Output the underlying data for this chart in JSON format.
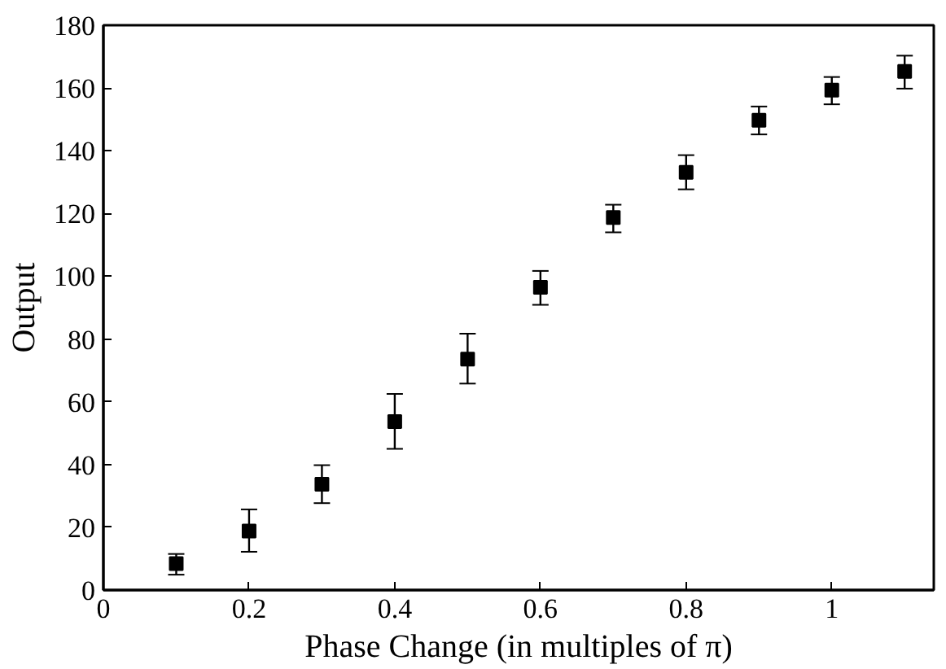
{
  "chart_data": {
    "type": "scatter",
    "xlabel": "Phase Change (in multiples of π)",
    "ylabel": "Output",
    "x": [
      0.1,
      0.2,
      0.3,
      0.4,
      0.5,
      0.6,
      0.7,
      0.8,
      0.9,
      1.0,
      1.1
    ],
    "series": [
      {
        "color": "#000000",
        "values": [
          8.4,
          18.8,
          33.7,
          53.7,
          73.6,
          96.5,
          118.7,
          133.1,
          149.7,
          159.3,
          165.3
        ],
        "errors": [
          [
            4.9,
            11.5
          ],
          [
            12.2,
            25.7
          ],
          [
            27.7,
            39.8
          ],
          [
            45,
            62.5
          ],
          [
            65.8,
            81.7
          ],
          [
            90.9,
            101.7
          ],
          [
            114,
            122.8
          ],
          [
            127.7,
            138.6
          ],
          [
            145.2,
            154.1
          ],
          [
            154.8,
            163.5
          ],
          [
            159.8,
            170.3
          ]
        ]
      }
    ],
    "marker": "square",
    "xlim": [
      0,
      1.14
    ],
    "ylim": [
      0,
      180
    ],
    "xticks": [
      0,
      0.2,
      0.4,
      0.6,
      0.8,
      1
    ],
    "yticks": [
      0,
      20,
      40,
      60,
      80,
      100,
      120,
      140,
      160,
      180
    ],
    "grid": false
  }
}
